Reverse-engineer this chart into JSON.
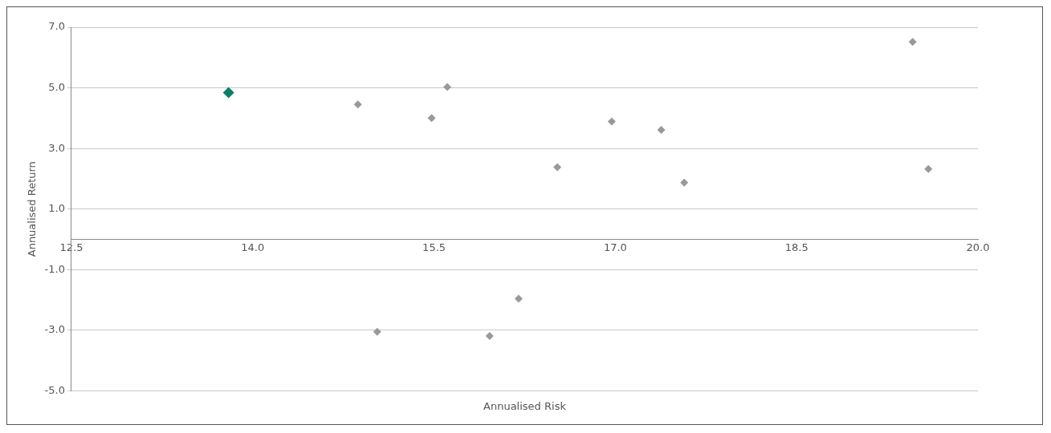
{
  "chart_data": {
    "type": "scatter",
    "xlabel": "Annualised Risk",
    "ylabel": "Annualised Return",
    "xlim": [
      12.5,
      20
    ],
    "xticks": [
      {
        "value": 12.5,
        "label": "12.5"
      },
      {
        "value": 14,
        "label": "14.0"
      },
      {
        "value": 15.5,
        "label": "15.5"
      },
      {
        "value": 17,
        "label": "17.0"
      },
      {
        "value": 18.5,
        "label": "18.5"
      },
      {
        "value": 20,
        "label": "20.0"
      }
    ],
    "ylim": [
      -5,
      7
    ],
    "yticks": [
      {
        "value": -5,
        "label": "-5.0"
      },
      {
        "value": -3,
        "label": "-3.0"
      },
      {
        "value": -1,
        "label": "-1.0"
      },
      {
        "value": 1,
        "label": "1.0"
      },
      {
        "value": 3,
        "label": "3.0"
      },
      {
        "value": 5,
        "label": "5.0"
      },
      {
        "value": 7,
        "label": "7.0"
      }
    ],
    "grid": "y",
    "marker": "diamond",
    "series": [
      {
        "color": "#999999",
        "x": [
          14.87,
          15.48,
          15.61,
          16.52,
          16.97,
          17.38,
          17.57,
          19.46,
          19.59,
          15.03,
          15.96,
          16.2
        ],
        "values": [
          4.45,
          4.0,
          5.03,
          2.38,
          3.89,
          3.61,
          1.87,
          6.52,
          2.32,
          -3.05,
          -3.19,
          -1.96
        ]
      },
      {
        "color": "#0e7e6b",
        "x": [
          13.8
        ],
        "values": [
          4.84
        ]
      }
    ]
  }
}
